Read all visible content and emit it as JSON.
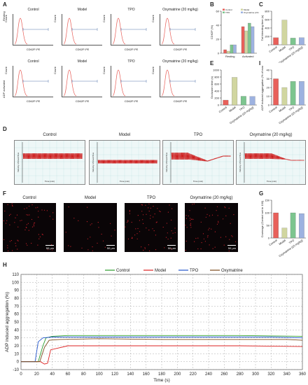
{
  "panels": {
    "A": "A",
    "B": "B",
    "C": "C",
    "D": "D",
    "E": "E",
    "F": "F",
    "G": "G",
    "H": "H",
    "I": "I"
  },
  "groups": [
    "Control",
    "Model",
    "TPO",
    "Oxymatrine (20 mg/kg)"
  ],
  "flow": {
    "row1_ylabel": "Resting",
    "row2_ylabel": "ADP activated",
    "xlabel": "CD62P-PE",
    "count": "Count"
  },
  "trace": {
    "xlabel": "Time (min)",
    "ylabel": "Velocity of blood flow"
  },
  "scale_bar": "50 μm",
  "colors": {
    "control": "#e8605a",
    "model": "#d1d6a0",
    "tpo": "#7dc58f",
    "oxy": "#9db2e0",
    "trace_red": "#cc1111"
  },
  "chart_data": [
    {
      "id": "B",
      "type": "bar",
      "ylabel": "CD62P (%)",
      "categories": [
        "Resting",
        "Activated"
      ],
      "series": [
        {
          "name": "Control",
          "values": [
            5,
            38
          ]
        },
        {
          "name": "Model",
          "values": [
            3,
            32
          ]
        },
        {
          "name": "TPO",
          "values": [
            12,
            43
          ]
        },
        {
          "name": "Oxymatrine (20 mg/kg)",
          "values": [
            12,
            38
          ]
        }
      ],
      "ylim": [
        0,
        60
      ],
      "yticks": [
        "0",
        "20",
        "40",
        "60"
      ]
    },
    {
      "id": "C",
      "type": "bar",
      "ylabel": "Tail bleeding time (s)",
      "categories": [
        "Control",
        "Model",
        "TPO",
        "Oxymatrine (20 mg/kg)"
      ],
      "values": [
        170,
        590,
        160,
        170
      ],
      "ylim": [
        0,
        800
      ],
      "yticks": [
        "0",
        "200",
        "400",
        "600",
        "800"
      ]
    },
    {
      "id": "E",
      "type": "bar",
      "ylabel": "Occlusion time (s)",
      "categories": [
        "Control",
        "Model",
        "TPO",
        "Oxymatrine (20 mg/kg)"
      ],
      "values": [
        140,
        790,
        250,
        245
      ],
      "ylim": [
        0,
        1000
      ],
      "yticks": [
        "0",
        "200",
        "400",
        "600",
        "800",
        "1000"
      ]
    },
    {
      "id": "I",
      "type": "bar",
      "ylabel": "ADP induced aggregation (% of max)",
      "categories": [
        "Control",
        "Model",
        "TPO",
        "Oxymatrine (20 mg/kg)"
      ],
      "values": [
        30,
        20,
        27,
        27
      ],
      "ylim": [
        0,
        40
      ],
      "yticks": [
        "0",
        "10",
        "20",
        "30",
        "40"
      ]
    },
    {
      "id": "G",
      "type": "bar",
      "ylabel": "Coverage (Control set to 100)",
      "categories": [
        "Control",
        "Model",
        "TPO",
        "Oxymatrine (20 mg/kg)"
      ],
      "values": [
        100,
        40,
        100,
        97
      ],
      "ylim": [
        0,
        150
      ],
      "yticks": [
        "0",
        "50",
        "100",
        "150"
      ]
    },
    {
      "id": "H",
      "type": "line",
      "xlabel": "Time (s)",
      "ylabel": "ADP induced aggregation (%)",
      "xlim": [
        0,
        360
      ],
      "ylim": [
        -10,
        110
      ],
      "xticks": [
        "0",
        "20",
        "40",
        "60",
        "80",
        "100",
        "120",
        "140",
        "160",
        "180",
        "200",
        "220",
        "240",
        "260",
        "280",
        "300",
        "320",
        "340",
        "360"
      ],
      "yticks": [
        "-10",
        "0",
        "10",
        "20",
        "30",
        "40",
        "50",
        "60",
        "70",
        "80",
        "90",
        "100",
        "110"
      ],
      "legend": [
        "Control",
        "Model",
        "TPO",
        "Oxymatrine"
      ],
      "series": [
        {
          "name": "Control",
          "color": "#2a9d2a",
          "x": [
            0,
            22,
            28,
            32,
            40,
            60,
            120,
            200,
            280,
            360
          ],
          "y": [
            0,
            0,
            20,
            30,
            32,
            33,
            33,
            33,
            33,
            32
          ]
        },
        {
          "name": "Model",
          "color": "#dd2222",
          "x": [
            0,
            25,
            30,
            34,
            38,
            60,
            120,
            200,
            280,
            360
          ],
          "y": [
            0,
            0,
            -3,
            -2,
            15,
            20,
            20,
            20,
            20,
            19
          ]
        },
        {
          "name": "TPO",
          "color": "#2255cc",
          "x": [
            0,
            18,
            22,
            28,
            40,
            80,
            160,
            240,
            320,
            360
          ],
          "y": [
            0,
            0,
            25,
            30,
            31,
            31,
            31,
            31,
            31,
            30
          ]
        },
        {
          "name": "Oxymatrine",
          "color": "#7a4a1a",
          "x": [
            0,
            24,
            30,
            36,
            50,
            100,
            180,
            260,
            340,
            360
          ],
          "y": [
            0,
            0,
            18,
            27,
            28,
            29,
            28,
            28,
            28,
            27
          ]
        }
      ]
    }
  ]
}
